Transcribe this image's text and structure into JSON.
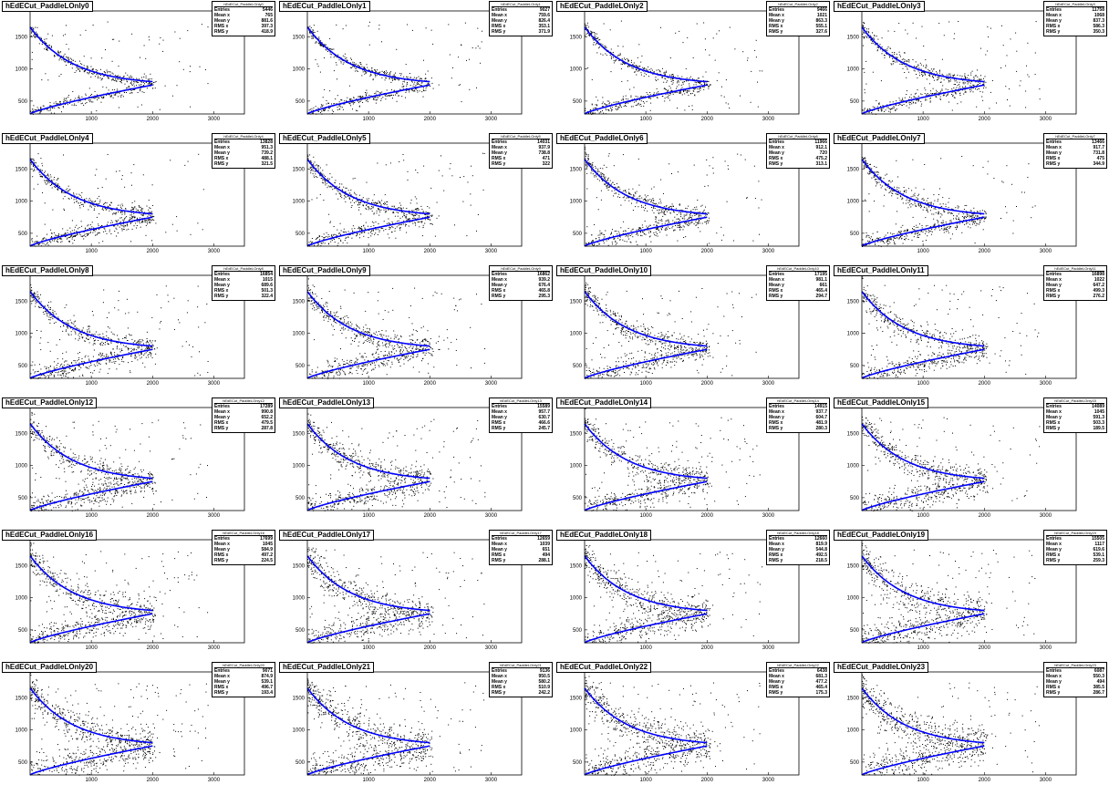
{
  "colors": {
    "fit_curve": "#0000ff",
    "points": "#000000",
    "frame": "#000000"
  },
  "stats_labels": [
    "Entries",
    "Mean x",
    "Mean y",
    "RMS x",
    "RMS y"
  ],
  "chart_data": [
    {
      "type": "scatter",
      "title": "hEdECut_PaddleLOnly0",
      "stats": {
        "entries": "5446",
        "mean_x": "765",
        "mean_y": "881.6",
        "rms_x": "397.3",
        "rms_y": "418.9"
      },
      "xlim": [
        0,
        3500
      ],
      "ylim": [
        300,
        1900
      ],
      "x_ticks": [
        1000,
        2000,
        3000
      ],
      "x_tick_labels": [
        "1000",
        "2000",
        "3000"
      ],
      "y_ticks": [
        500,
        1000,
        1500
      ],
      "y_tick_labels": [
        "500",
        "1000",
        "1500"
      ]
    },
    {
      "type": "scatter",
      "title": "hEdECut_PaddleLOnly1",
      "stats": {
        "entries": "9027",
        "mean_x": "759.6",
        "mean_y": "826.4",
        "rms_x": "353.1",
        "rms_y": "371.9"
      },
      "xlim": [
        0,
        3500
      ],
      "ylim": [
        300,
        1900
      ],
      "x_ticks": [
        1000,
        2000,
        3000
      ],
      "x_tick_labels": [
        "1000",
        "2000",
        "3000"
      ],
      "y_ticks": [
        500,
        1000,
        1500
      ],
      "y_tick_labels": [
        "500",
        "1000",
        "1500"
      ]
    },
    {
      "type": "scatter",
      "title": "hEdECut_PaddleLOnly2",
      "stats": {
        "entries": "9466",
        "mean_x": "1021",
        "mean_y": "863.3",
        "rms_x": "555.1",
        "rms_y": "327.6"
      },
      "xlim": [
        0,
        3500
      ],
      "ylim": [
        300,
        1900
      ],
      "x_ticks": [
        1000,
        2000,
        3000
      ],
      "x_tick_labels": [
        "1000",
        "2000",
        "3000"
      ],
      "y_ticks": [
        500,
        1000,
        1500
      ],
      "y_tick_labels": [
        "500",
        "1000",
        "1500"
      ]
    },
    {
      "type": "scatter",
      "title": "hEdECut_PaddleLOnly3",
      "stats": {
        "entries": "11758",
        "mean_x": "1068",
        "mean_y": "837.3",
        "rms_x": "586.3",
        "rms_y": "350.3"
      },
      "xlim": [
        0,
        3500
      ],
      "ylim": [
        300,
        1900
      ],
      "x_ticks": [
        1000,
        2000,
        3000
      ],
      "x_tick_labels": [
        "1000",
        "2000",
        "3000"
      ],
      "y_ticks": [
        500,
        1000,
        1500
      ],
      "y_tick_labels": [
        "500",
        "1000",
        "1500"
      ]
    },
    {
      "type": "scatter",
      "title": "hEdECut_PaddleLOnly4",
      "stats": {
        "entries": "13828",
        "mean_x": "951.3",
        "mean_y": "739.2",
        "rms_x": "488.1",
        "rms_y": "321.5"
      },
      "xlim": [
        0,
        3500
      ],
      "ylim": [
        300,
        1900
      ],
      "x_ticks": [
        1000,
        2000,
        3000
      ],
      "x_tick_labels": [
        "1000",
        "2000",
        "3000"
      ],
      "y_ticks": [
        500,
        1000,
        1500
      ],
      "y_tick_labels": [
        "500",
        "1000",
        "1500"
      ]
    },
    {
      "type": "scatter",
      "title": "hEdECut_PaddleLOnly5",
      "stats": {
        "entries": "14031",
        "mean_x": "937.9",
        "mean_y": "738.8",
        "rms_x": "471",
        "rms_y": "322"
      },
      "xlim": [
        0,
        3500
      ],
      "ylim": [
        300,
        1900
      ],
      "x_ticks": [
        1000,
        2000,
        3000
      ],
      "x_tick_labels": [
        "1000",
        "2000",
        "3000"
      ],
      "y_ticks": [
        500,
        1000,
        1500
      ],
      "y_tick_labels": [
        "500",
        "1000",
        "1500"
      ]
    },
    {
      "type": "scatter",
      "title": "hEdECut_PaddleLOnly6",
      "stats": {
        "entries": "11966",
        "mean_x": "912.1",
        "mean_y": "720",
        "rms_x": "475.2",
        "rms_y": "313.1"
      },
      "xlim": [
        0,
        3500
      ],
      "ylim": [
        300,
        1900
      ],
      "x_ticks": [
        1000,
        2000,
        3000
      ],
      "x_tick_labels": [
        "1000",
        "2000",
        "3000"
      ],
      "y_ticks": [
        500,
        1000,
        1500
      ],
      "y_tick_labels": [
        "500",
        "1000",
        "1500"
      ]
    },
    {
      "type": "scatter",
      "title": "hEdECut_PaddleLOnly7",
      "stats": {
        "entries": "13466",
        "mean_x": "917.7",
        "mean_y": "731.8",
        "rms_x": "475",
        "rms_y": "344.9"
      },
      "xlim": [
        0,
        3500
      ],
      "ylim": [
        300,
        1900
      ],
      "x_ticks": [
        1000,
        2000,
        3000
      ],
      "x_tick_labels": [
        "1000",
        "2000",
        "3000"
      ],
      "y_ticks": [
        500,
        1000,
        1500
      ],
      "y_tick_labels": [
        "500",
        "1000",
        "1500"
      ]
    },
    {
      "type": "scatter",
      "title": "hEdECut_PaddleLOnly8",
      "stats": {
        "entries": "16854",
        "mean_x": "1015",
        "mean_y": "689.6",
        "rms_x": "501.3",
        "rms_y": "322.4"
      },
      "xlim": [
        0,
        3500
      ],
      "ylim": [
        300,
        1900
      ],
      "x_ticks": [
        1000,
        2000,
        3000
      ],
      "x_tick_labels": [
        "1000",
        "2000",
        "3000"
      ],
      "y_ticks": [
        500,
        1000,
        1500
      ],
      "y_tick_labels": [
        "500",
        "1000",
        "1500"
      ]
    },
    {
      "type": "scatter",
      "title": "hEdECut_PaddleLOnly9",
      "stats": {
        "entries": "16862",
        "mean_x": "939.2",
        "mean_y": "676.4",
        "rms_x": "465.8",
        "rms_y": "295.3"
      },
      "xlim": [
        0,
        3500
      ],
      "ylim": [
        300,
        1900
      ],
      "x_ticks": [
        1000,
        2000,
        3000
      ],
      "x_tick_labels": [
        "1000",
        "2000",
        "3000"
      ],
      "y_ticks": [
        500,
        1000,
        1500
      ],
      "y_tick_labels": [
        "500",
        "1000",
        "1500"
      ]
    },
    {
      "type": "scatter",
      "title": "hEdECut_PaddleLOnly10",
      "stats": {
        "entries": "17195",
        "mean_x": "981.1",
        "mean_y": "661",
        "rms_x": "465.4",
        "rms_y": "294.7"
      },
      "xlim": [
        0,
        3500
      ],
      "ylim": [
        300,
        1900
      ],
      "x_ticks": [
        1000,
        2000,
        3000
      ],
      "x_tick_labels": [
        "1000",
        "2000",
        "3000"
      ],
      "y_ticks": [
        500,
        1000,
        1500
      ],
      "y_tick_labels": [
        "500",
        "1000",
        "1500"
      ]
    },
    {
      "type": "scatter",
      "title": "hEdECut_PaddleLOnly11",
      "stats": {
        "entries": "16898",
        "mean_x": "1022",
        "mean_y": "647.2",
        "rms_x": "499.3",
        "rms_y": "276.2"
      },
      "xlim": [
        0,
        3500
      ],
      "ylim": [
        300,
        1900
      ],
      "x_ticks": [
        1000,
        2000,
        3000
      ],
      "x_tick_labels": [
        "1000",
        "2000",
        "3000"
      ],
      "y_ticks": [
        500,
        1000,
        1500
      ],
      "y_tick_labels": [
        "500",
        "1000",
        "1500"
      ]
    },
    {
      "type": "scatter",
      "title": "hEdECut_PaddleLOnly12",
      "stats": {
        "entries": "17289",
        "mean_x": "990.8",
        "mean_y": "652.2",
        "rms_x": "479.5",
        "rms_y": "287.8"
      },
      "xlim": [
        0,
        3500
      ],
      "ylim": [
        300,
        1900
      ],
      "x_ticks": [
        1000,
        2000,
        3000
      ],
      "x_tick_labels": [
        "1000",
        "2000",
        "3000"
      ],
      "y_ticks": [
        500,
        1000,
        1500
      ],
      "y_tick_labels": [
        "500",
        "1000",
        "1500"
      ]
    },
    {
      "type": "scatter",
      "title": "hEdECut_PaddleLOnly13",
      "stats": {
        "entries": "15589",
        "mean_x": "957.7",
        "mean_y": "630.7",
        "rms_x": "466.6",
        "rms_y": "245.7"
      },
      "xlim": [
        0,
        3500
      ],
      "ylim": [
        300,
        1900
      ],
      "x_ticks": [
        1000,
        2000,
        3000
      ],
      "x_tick_labels": [
        "1000",
        "2000",
        "3000"
      ],
      "y_ticks": [
        500,
        1000,
        1500
      ],
      "y_tick_labels": [
        "500",
        "1000",
        "1500"
      ]
    },
    {
      "type": "scatter",
      "title": "hEdECut_PaddleLOnly14",
      "stats": {
        "entries": "14915",
        "mean_x": "937.7",
        "mean_y": "604.7",
        "rms_x": "481.9",
        "rms_y": "280.3"
      },
      "xlim": [
        0,
        3500
      ],
      "ylim": [
        300,
        1900
      ],
      "x_ticks": [
        1000,
        2000,
        3000
      ],
      "x_tick_labels": [
        "1000",
        "2000",
        "3000"
      ],
      "y_ticks": [
        500,
        1000,
        1500
      ],
      "y_tick_labels": [
        "500",
        "1000",
        "1500"
      ]
    },
    {
      "type": "scatter",
      "title": "hEdECut_PaddleLOnly15",
      "stats": {
        "entries": "14089",
        "mean_x": "1045",
        "mean_y": "591.3",
        "rms_x": "503.3",
        "rms_y": "189.5"
      },
      "xlim": [
        0,
        3500
      ],
      "ylim": [
        300,
        1900
      ],
      "x_ticks": [
        1000,
        2000,
        3000
      ],
      "x_tick_labels": [
        "1000",
        "2000",
        "3000"
      ],
      "y_ticks": [
        500,
        1000,
        1500
      ],
      "y_tick_labels": [
        "500",
        "1000",
        "1500"
      ]
    },
    {
      "type": "scatter",
      "title": "hEdECut_PaddleLOnly16",
      "stats": {
        "entries": "17699",
        "mean_x": "1045",
        "mean_y": "584.9",
        "rms_x": "497.2",
        "rms_y": "224.5"
      },
      "xlim": [
        0,
        3500
      ],
      "ylim": [
        300,
        1900
      ],
      "x_ticks": [
        1000,
        2000,
        3000
      ],
      "x_tick_labels": [
        "1000",
        "2000",
        "3000"
      ],
      "y_ticks": [
        500,
        1000,
        1500
      ],
      "y_tick_labels": [
        "500",
        "1000",
        "1500"
      ]
    },
    {
      "type": "scatter",
      "title": "hEdECut_PaddleLOnly17",
      "stats": {
        "entries": "12659",
        "mean_x": "1039",
        "mean_y": "651",
        "rms_x": "494",
        "rms_y": "288.1"
      },
      "xlim": [
        0,
        3500
      ],
      "ylim": [
        300,
        1900
      ],
      "x_ticks": [
        1000,
        2000,
        3000
      ],
      "x_tick_labels": [
        "1000",
        "2000",
        "3000"
      ],
      "y_ticks": [
        500,
        1000,
        1500
      ],
      "y_tick_labels": [
        "500",
        "1000",
        "1500"
      ]
    },
    {
      "type": "scatter",
      "title": "hEdECut_PaddleLOnly18",
      "stats": {
        "entries": "12660",
        "mean_x": "819.9",
        "mean_y": "544.8",
        "rms_x": "492.5",
        "rms_y": "218.5"
      },
      "xlim": [
        0,
        3500
      ],
      "ylim": [
        300,
        1900
      ],
      "x_ticks": [
        1000,
        2000,
        3000
      ],
      "x_tick_labels": [
        "1000",
        "2000",
        "3000"
      ],
      "y_ticks": [
        500,
        1000,
        1500
      ],
      "y_tick_labels": [
        "500",
        "1000",
        "1500"
      ]
    },
    {
      "type": "scatter",
      "title": "hEdECut_PaddleLOnly19",
      "stats": {
        "entries": "15505",
        "mean_x": "1117",
        "mean_y": "619.6",
        "rms_x": "539.1",
        "rms_y": "259.3"
      },
      "xlim": [
        0,
        3500
      ],
      "ylim": [
        300,
        1900
      ],
      "x_ticks": [
        1000,
        2000,
        3000
      ],
      "x_tick_labels": [
        "1000",
        "2000",
        "3000"
      ],
      "y_ticks": [
        500,
        1000,
        1500
      ],
      "y_tick_labels": [
        "500",
        "1000",
        "1500"
      ]
    },
    {
      "type": "scatter",
      "title": "hEdECut_PaddleLOnly20",
      "stats": {
        "entries": "9071",
        "mean_x": "874.9",
        "mean_y": "539.1",
        "rms_x": "496.7",
        "rms_y": "193.4"
      },
      "xlim": [
        0,
        3500
      ],
      "ylim": [
        300,
        1900
      ],
      "x_ticks": [
        1000,
        2000,
        3000
      ],
      "x_tick_labels": [
        "1000",
        "2000",
        "3000"
      ],
      "y_ticks": [
        500,
        1000,
        1500
      ],
      "y_tick_labels": [
        "500",
        "1000",
        "1500"
      ]
    },
    {
      "type": "scatter",
      "title": "hEdECut_PaddleLOnly21",
      "stats": {
        "entries": "9136",
        "mean_x": "950.5",
        "mean_y": "580.2",
        "rms_x": "510.9",
        "rms_y": "242.2"
      },
      "xlim": [
        0,
        3500
      ],
      "ylim": [
        300,
        1900
      ],
      "x_ticks": [
        1000,
        2000,
        3000
      ],
      "x_tick_labels": [
        "1000",
        "2000",
        "3000"
      ],
      "y_ticks": [
        500,
        1000,
        1500
      ],
      "y_tick_labels": [
        "500",
        "1000",
        "1500"
      ]
    },
    {
      "type": "scatter",
      "title": "hEdECut_PaddleLOnly22",
      "stats": {
        "entries": "6438",
        "mean_x": "681.3",
        "mean_y": "477.2",
        "rms_x": "465.4",
        "rms_y": "175.3"
      },
      "xlim": [
        0,
        3500
      ],
      "ylim": [
        300,
        1900
      ],
      "x_ticks": [
        1000,
        2000,
        3000
      ],
      "x_tick_labels": [
        "1000",
        "2000",
        "3000"
      ],
      "y_ticks": [
        500,
        1000,
        1500
      ],
      "y_tick_labels": [
        "500",
        "1000",
        "1500"
      ]
    },
    {
      "type": "scatter",
      "title": "hEdECut_PaddleLOnly23",
      "stats": {
        "entries": "6087",
        "mean_x": "550.3",
        "mean_y": "494",
        "rms_x": "385.5",
        "rms_y": "286.7"
      },
      "xlim": [
        0,
        3500
      ],
      "ylim": [
        300,
        1900
      ],
      "x_ticks": [
        1000,
        2000,
        3000
      ],
      "x_tick_labels": [
        "1000",
        "2000",
        "3000"
      ],
      "y_ticks": [
        500,
        1000,
        1500
      ],
      "y_tick_labels": [
        "500",
        "1000",
        "1500"
      ]
    }
  ]
}
